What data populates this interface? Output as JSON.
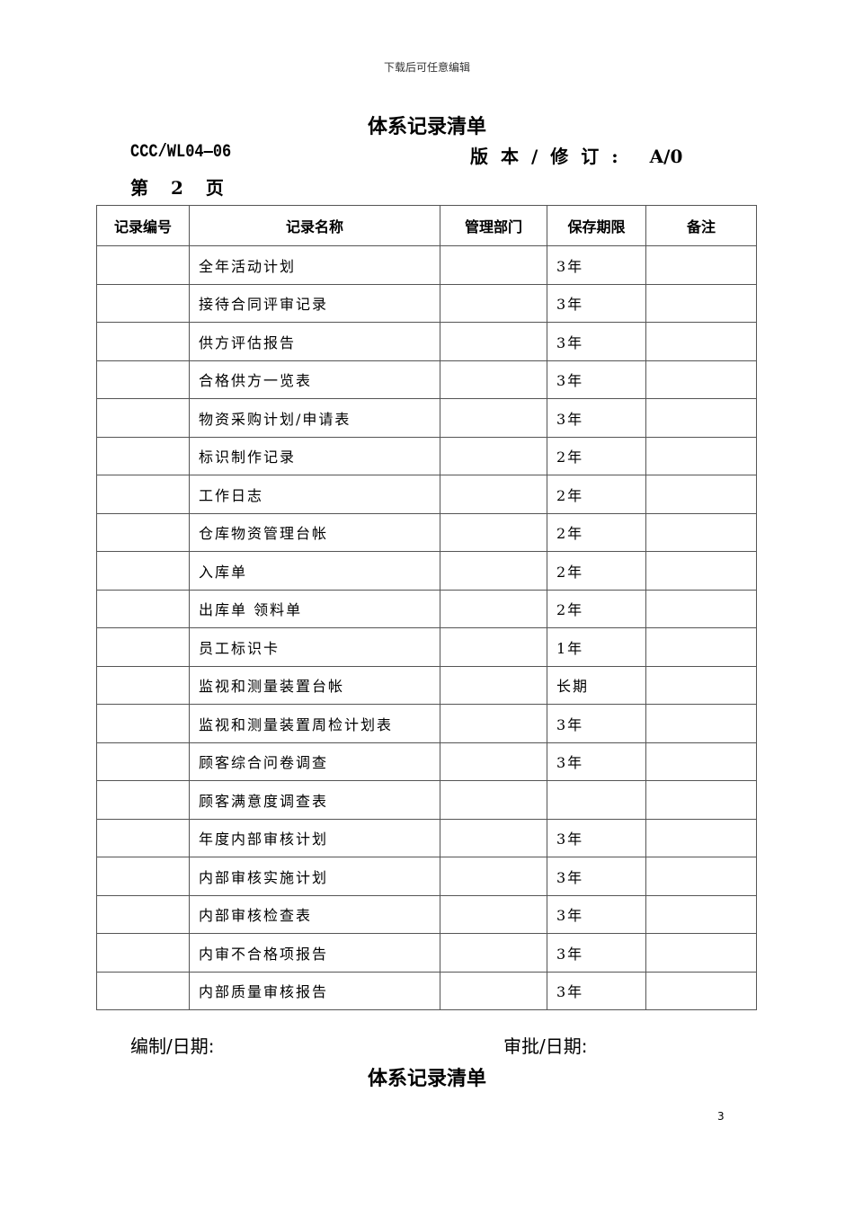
{
  "watermark": "下载后可任意编辑",
  "title": "体系记录清单",
  "doc_number": "CCC/WL04—06",
  "version_label": "版本/修订:",
  "version_value": "A/0",
  "page_label": "第 2 页",
  "table": {
    "headers": [
      "记录编号",
      "记录名称",
      "管理部门",
      "保存期限",
      "备注"
    ],
    "rows": [
      {
        "name": "全年活动计划",
        "period": "3年"
      },
      {
        "name": "接待合同评审记录",
        "period": "3年"
      },
      {
        "name": "供方评估报告",
        "period": "3年"
      },
      {
        "name": "合格供方一览表",
        "period": "3年"
      },
      {
        "name": "物资采购计划/申请表",
        "period": "3年"
      },
      {
        "name": "标识制作记录",
        "period": "2年"
      },
      {
        "name": "工作日志",
        "period": "2年"
      },
      {
        "name": "仓库物资管理台帐",
        "period": "2年"
      },
      {
        "name": "入库单",
        "period": "2年"
      },
      {
        "name": "出库单 领料单",
        "period": "2年"
      },
      {
        "name": "员工标识卡",
        "period": "1年"
      },
      {
        "name": "监视和测量装置台帐",
        "period": "长期"
      },
      {
        "name": "监视和测量装置周检计划表",
        "period": "3年"
      },
      {
        "name": "顾客综合问卷调查",
        "period": "3年"
      },
      {
        "name": "顾客满意度调查表",
        "period": ""
      },
      {
        "name": "年度内部审核计划",
        "period": "3年"
      },
      {
        "name": "内部审核实施计划",
        "period": "3年"
      },
      {
        "name": "内部审核检查表",
        "period": "3年"
      },
      {
        "name": "内审不合格项报告",
        "period": "3年"
      },
      {
        "name": "内部质量审核报告",
        "period": "3年"
      }
    ]
  },
  "footer": {
    "prepared": "编制/日期:",
    "approved": "审批/日期:"
  },
  "title_repeat": "体系记录清单",
  "page_number": "3"
}
